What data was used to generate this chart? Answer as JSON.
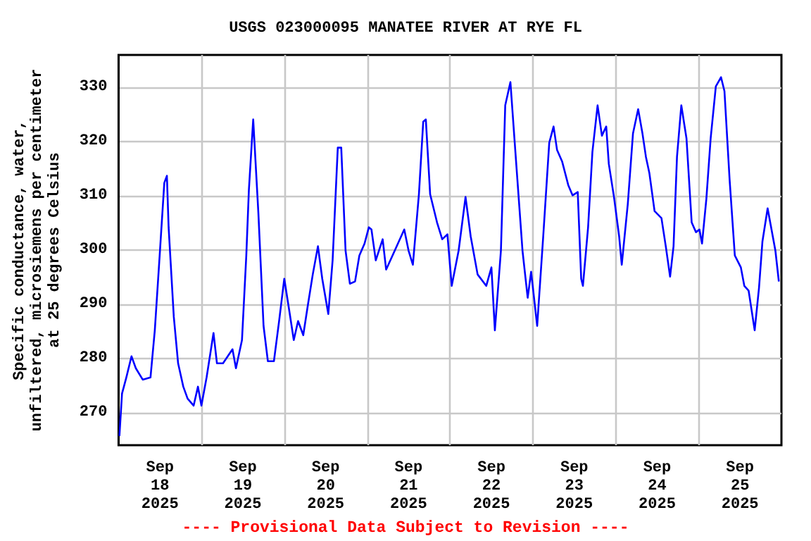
{
  "chart_data": {
    "type": "line",
    "title": "USGS 023000095 MANATEE RIVER AT RYE FL",
    "ylabel": "Specific conductance, water,\nunfiltered, microsiemens per centimeter\nat 25 degrees Celsius",
    "annotations": [
      "---- Provisional Data Subject to Revision ----"
    ],
    "x": [
      "2025-09-18T00:15",
      "2025-09-18T01:00",
      "2025-09-18T02:15",
      "2025-09-18T03:45",
      "2025-09-18T05:00",
      "2025-09-18T07:00",
      "2025-09-18T09:15",
      "2025-09-18T10:30",
      "2025-09-18T12:00",
      "2025-09-18T13:15",
      "2025-09-18T14:00",
      "2025-09-18T14:30",
      "2025-09-18T16:00",
      "2025-09-18T17:15",
      "2025-09-18T18:45",
      "2025-09-18T20:00",
      "2025-09-18T21:45",
      "2025-09-18T23:00",
      "2025-09-19T00:00",
      "2025-09-19T01:30",
      "2025-09-19T03:30",
      "2025-09-19T04:30",
      "2025-09-19T06:15",
      "2025-09-19T09:00",
      "2025-09-19T10:00",
      "2025-09-19T11:45",
      "2025-09-19T13:00",
      "2025-09-19T13:45",
      "2025-09-19T15:00",
      "2025-09-19T16:30",
      "2025-09-19T18:00",
      "2025-09-19T19:15",
      "2025-09-19T21:00",
      "2025-09-19T22:30",
      "2025-09-20T00:00",
      "2025-09-20T01:30",
      "2025-09-20T02:45",
      "2025-09-20T04:00",
      "2025-09-20T05:30",
      "2025-09-20T06:45",
      "2025-09-20T08:15",
      "2025-09-20T09:45",
      "2025-09-20T11:00",
      "2025-09-20T12:45",
      "2025-09-20T14:00",
      "2025-09-20T15:30",
      "2025-09-20T16:30",
      "2025-09-20T17:45",
      "2025-09-20T19:00",
      "2025-09-20T20:30",
      "2025-09-20T21:45",
      "2025-09-20T23:15",
      "2025-09-21T00:30",
      "2025-09-21T01:15",
      "2025-09-21T02:30",
      "2025-09-21T04:30",
      "2025-09-21T05:30",
      "2025-09-21T08:00",
      "2025-09-21T10:45",
      "2025-09-21T12:00",
      "2025-09-21T13:15",
      "2025-09-21T15:00",
      "2025-09-21T16:15",
      "2025-09-21T17:00",
      "2025-09-21T18:15",
      "2025-09-21T20:15",
      "2025-09-21T21:45",
      "2025-09-21T23:15",
      "2025-09-22T00:30",
      "2025-09-22T02:30",
      "2025-09-22T04:30",
      "2025-09-22T06:00",
      "2025-09-22T08:00",
      "2025-09-22T10:30",
      "2025-09-22T12:00",
      "2025-09-22T13:00",
      "2025-09-22T14:45",
      "2025-09-22T16:00",
      "2025-09-22T17:30",
      "2025-09-22T18:45",
      "2025-09-22T21:00",
      "2025-09-22T22:30",
      "2025-09-22T23:30",
      "2025-09-23T01:15",
      "2025-09-23T03:00",
      "2025-09-23T04:45",
      "2025-09-23T06:00",
      "2025-09-23T07:00",
      "2025-09-23T08:30",
      "2025-09-23T10:15",
      "2025-09-23T11:30",
      "2025-09-23T13:00",
      "2025-09-23T14:00",
      "2025-09-23T14:30",
      "2025-09-23T16:00",
      "2025-09-23T17:15",
      "2025-09-23T18:45",
      "2025-09-23T20:00",
      "2025-09-23T21:15",
      "2025-09-23T22:00",
      "2025-09-23T23:30",
      "2025-09-24T01:00",
      "2025-09-24T01:45",
      "2025-09-24T03:30",
      "2025-09-24T05:00",
      "2025-09-24T06:30",
      "2025-09-24T07:45",
      "2025-09-24T08:45",
      "2025-09-24T09:45",
      "2025-09-24T11:15",
      "2025-09-24T13:15",
      "2025-09-24T14:30",
      "2025-09-24T15:45",
      "2025-09-24T16:45",
      "2025-09-24T17:45",
      "2025-09-24T19:00",
      "2025-09-24T20:30",
      "2025-09-24T22:00",
      "2025-09-24T23:15",
      "2025-09-25T00:15",
      "2025-09-25T01:00",
      "2025-09-25T02:15",
      "2025-09-25T03:30",
      "2025-09-25T05:00",
      "2025-09-25T06:30",
      "2025-09-25T07:30",
      "2025-09-25T09:00",
      "2025-09-25T10:30",
      "2025-09-25T12:15",
      "2025-09-25T13:15",
      "2025-09-25T14:30",
      "2025-09-25T16:15",
      "2025-09-25T17:30",
      "2025-09-25T18:30",
      "2025-09-25T20:00",
      "2025-09-25T20:45",
      "2025-09-25T22:15",
      "2025-09-25T23:15"
    ],
    "series": [
      {
        "color": "#0000ff",
        "values": [
          265.7,
          273.5,
          276.5,
          280.4,
          278.2,
          276.1,
          276.5,
          285.2,
          299.9,
          312.4,
          313.7,
          304.2,
          287.7,
          279.1,
          274.8,
          272.6,
          271.3,
          274.8,
          271.3,
          276.5,
          284.7,
          279.1,
          279.1,
          281.7,
          278.2,
          283.4,
          299.0,
          311.1,
          324.1,
          306.8,
          286.0,
          279.5,
          279.5,
          286.9,
          294.7,
          288.6,
          283.4,
          286.9,
          284.3,
          289.5,
          295.5,
          300.7,
          294.7,
          288.2,
          298.1,
          318.9,
          318.9,
          299.9,
          293.8,
          294.2,
          299.0,
          301.2,
          304.2,
          303.8,
          298.1,
          302.0,
          296.4,
          299.9,
          303.8,
          299.9,
          297.3,
          310.3,
          323.7,
          324.1,
          310.3,
          305.1,
          302.0,
          302.9,
          293.4,
          299.9,
          309.8,
          302.5,
          295.5,
          293.4,
          296.8,
          285.2,
          299.9,
          326.7,
          331.0,
          319.8,
          299.9,
          291.2,
          296.0,
          286.0,
          302.5,
          319.8,
          322.8,
          318.5,
          316.3,
          312.0,
          310.1,
          310.7,
          294.7,
          293.4,
          304.2,
          318.1,
          326.7,
          321.1,
          322.8,
          315.9,
          309.8,
          302.5,
          297.3,
          308.5,
          321.5,
          326.0,
          321.5,
          317.2,
          314.2,
          307.2,
          305.9,
          300.7,
          295.1,
          300.7,
          317.2,
          326.7,
          320.6,
          305.1,
          303.3,
          303.8,
          301.2,
          309.4,
          320.6,
          330.2,
          331.9,
          329.3,
          312.9,
          299.0,
          296.8,
          293.4,
          292.5,
          285.2,
          293.0,
          301.6,
          307.7,
          305.1,
          299.9,
          294.2
        ]
      }
    ],
    "xlim": [
      "2025-09-18T00:00",
      "2025-09-26T00:00"
    ],
    "xticks": [
      {
        "value": "2025-09-18T12:00",
        "label": "Sep\n18\n2025"
      },
      {
        "value": "2025-09-19T00:00",
        "label": null
      },
      {
        "value": "2025-09-19T12:00",
        "label": "Sep\n19\n2025"
      },
      {
        "value": "2025-09-20T00:00",
        "label": null
      },
      {
        "value": "2025-09-20T12:00",
        "label": "Sep\n20\n2025"
      },
      {
        "value": "2025-09-21T00:00",
        "label": null
      },
      {
        "value": "2025-09-21T12:00",
        "label": "Sep\n21\n2025"
      },
      {
        "value": "2025-09-22T00:00",
        "label": null
      },
      {
        "value": "2025-09-22T12:00",
        "label": "Sep\n22\n2025"
      },
      {
        "value": "2025-09-23T00:00",
        "label": null
      },
      {
        "value": "2025-09-23T12:00",
        "label": "Sep\n23\n2025"
      },
      {
        "value": "2025-09-24T00:00",
        "label": null
      },
      {
        "value": "2025-09-24T12:00",
        "label": "Sep\n24\n2025"
      },
      {
        "value": "2025-09-25T00:00",
        "label": null
      },
      {
        "value": "2025-09-25T12:00",
        "label": "Sep\n25\n2025"
      }
    ],
    "ylim": [
      264,
      336
    ],
    "yticks": [
      270,
      280,
      290,
      300,
      310,
      320,
      330
    ],
    "grid": true,
    "marker": "none",
    "line_style": "solid"
  }
}
